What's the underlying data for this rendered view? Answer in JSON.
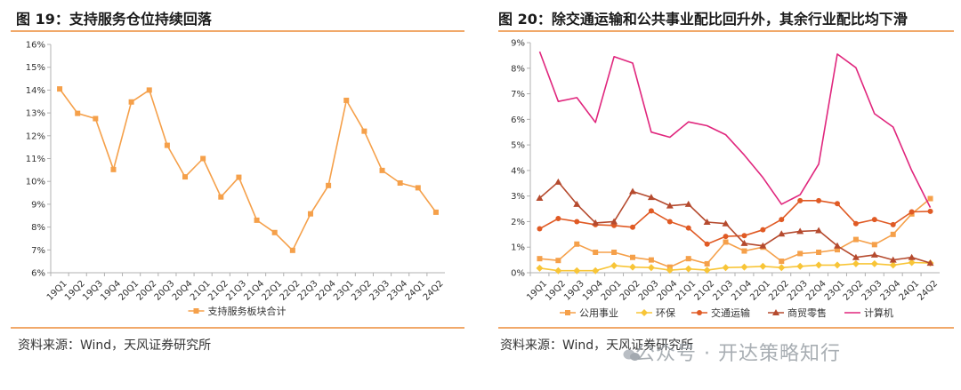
{
  "left_panel": {
    "title": "图 19：支持服务仓位持续回落",
    "source": "资料来源：Wind，天风证券研究所"
  },
  "right_panel": {
    "title": "图 20：除交通运输和公共事业配比回升外，其余行业配比均下滑",
    "source": "资料来源：Wind，天风证券研究所"
  },
  "watermark": "公众号 · 开达策略知行",
  "colors": {
    "rule": "#f1a96a",
    "orange": "#f5a04a",
    "yellow": "#f8c537",
    "red": "#e05a24",
    "brown": "#b54a2e",
    "pink": "#e0267d",
    "grid": "#e6e6e6"
  },
  "chart_data": [
    {
      "type": "line",
      "categories": [
        "19Q1",
        "19Q2",
        "19Q3",
        "19Q4",
        "20Q1",
        "20Q2",
        "20Q3",
        "20Q4",
        "21Q1",
        "21Q2",
        "21Q3",
        "21Q4",
        "22Q1",
        "22Q2",
        "22Q3",
        "22Q4",
        "23Q1",
        "23Q2",
        "23Q3",
        "23Q4",
        "24Q1",
        "24Q2"
      ],
      "series": [
        {
          "name": "支持服务板块合计",
          "values": [
            14.05,
            12.98,
            12.75,
            10.52,
            13.48,
            14.0,
            11.58,
            10.2,
            11.0,
            9.32,
            10.18,
            8.3,
            7.76,
            6.98,
            8.58,
            9.82,
            13.55,
            12.2,
            10.48,
            9.93,
            9.72,
            8.65
          ]
        }
      ],
      "ylim": [
        6,
        16
      ],
      "yticks": [
        "6%",
        "7%",
        "8%",
        "9%",
        "10%",
        "11%",
        "12%",
        "13%",
        "14%",
        "15%",
        "16%"
      ],
      "legend_position": "bottom",
      "grid": false
    },
    {
      "type": "line",
      "categories": [
        "19Q1",
        "19Q2",
        "19Q3",
        "19Q4",
        "20Q1",
        "20Q2",
        "20Q3",
        "20Q4",
        "21Q1",
        "21Q2",
        "21Q3",
        "21Q4",
        "22Q1",
        "22Q2",
        "22Q3",
        "22Q4",
        "23Q1",
        "23Q2",
        "23Q3",
        "23Q4",
        "24Q1",
        "24Q2"
      ],
      "series": [
        {
          "name": "公用事业",
          "marker": "square",
          "values": [
            0.55,
            0.48,
            1.12,
            0.8,
            0.8,
            0.6,
            0.5,
            0.22,
            0.55,
            0.35,
            1.2,
            0.85,
            1.0,
            0.45,
            0.75,
            0.8,
            0.9,
            1.3,
            1.1,
            1.5,
            2.3,
            2.9
          ]
        },
        {
          "name": "环保",
          "marker": "diamond",
          "values": [
            0.18,
            0.08,
            0.08,
            0.08,
            0.28,
            0.22,
            0.2,
            0.1,
            0.15,
            0.1,
            0.2,
            0.22,
            0.25,
            0.2,
            0.25,
            0.3,
            0.3,
            0.35,
            0.35,
            0.3,
            0.4,
            0.38
          ]
        },
        {
          "name": "交通运输",
          "marker": "circle",
          "values": [
            1.72,
            2.12,
            2.0,
            1.88,
            1.85,
            1.78,
            2.42,
            2.0,
            1.75,
            1.12,
            1.42,
            1.45,
            1.68,
            2.08,
            2.82,
            2.82,
            2.7,
            1.92,
            2.08,
            1.88,
            2.38,
            2.4
          ]
        },
        {
          "name": "商贸零售",
          "marker": "triangle",
          "values": [
            2.92,
            3.55,
            2.68,
            1.95,
            2.0,
            3.18,
            2.95,
            2.62,
            2.68,
            1.98,
            1.92,
            1.15,
            1.05,
            1.52,
            1.62,
            1.65,
            1.05,
            0.6,
            0.7,
            0.5,
            0.6,
            0.38
          ]
        },
        {
          "name": "计算机",
          "marker": "line",
          "values": [
            8.65,
            6.7,
            6.85,
            5.88,
            8.45,
            8.2,
            5.5,
            5.3,
            5.9,
            5.75,
            5.4,
            4.6,
            3.72,
            2.68,
            3.05,
            4.25,
            8.55,
            8.02,
            6.22,
            5.7,
            4.0,
            2.55
          ]
        }
      ],
      "ylim": [
        0,
        9
      ],
      "yticks": [
        "0%",
        "1%",
        "2%",
        "3%",
        "4%",
        "5%",
        "6%",
        "7%",
        "8%",
        "9%"
      ],
      "legend_position": "bottom",
      "grid": false
    }
  ]
}
